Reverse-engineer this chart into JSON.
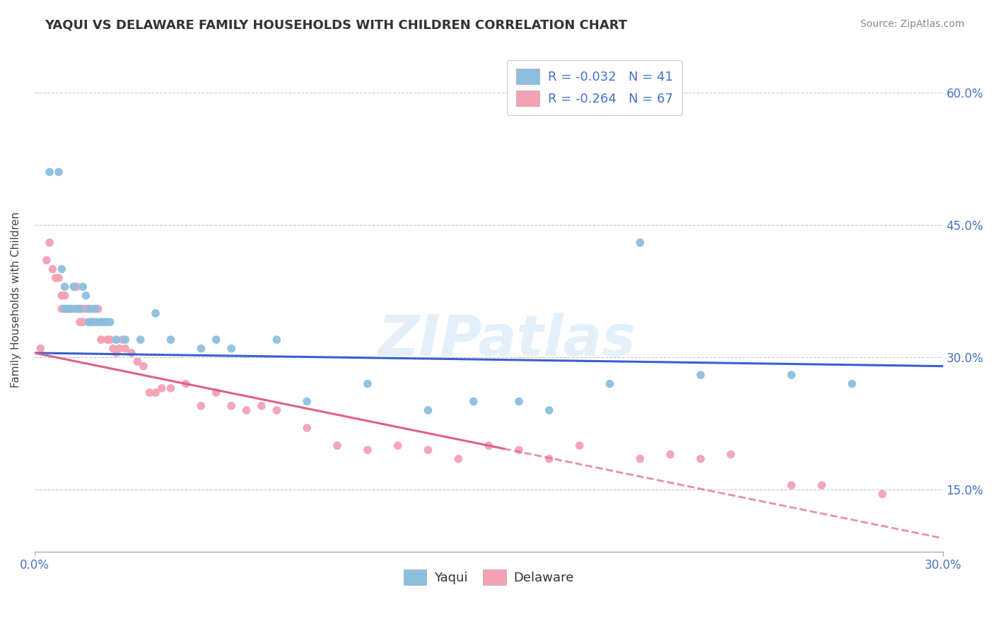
{
  "title": "YAQUI VS DELAWARE FAMILY HOUSEHOLDS WITH CHILDREN CORRELATION CHART",
  "source": "Source: ZipAtlas.com",
  "ylabel": "Family Households with Children",
  "xlim": [
    0.0,
    0.3
  ],
  "ylim": [
    0.08,
    0.65
  ],
  "yticks": [
    0.15,
    0.3,
    0.45,
    0.6
  ],
  "ytick_labels": [
    "15.0%",
    "30.0%",
    "45.0%",
    "60.0%"
  ],
  "xtick_labels": [
    "0.0%",
    "30.0%"
  ],
  "yaqui_color": "#8bbfdf",
  "delaware_color": "#f4a0b5",
  "yaqui_line_color": "#3a5fcd",
  "delaware_line_color": "#e06080",
  "yaqui_R": -0.032,
  "yaqui_N": 41,
  "delaware_R": -0.264,
  "delaware_N": 67,
  "watermark": "ZIPatlas",
  "background_color": "#ffffff",
  "grid_color": "#c8c8c8",
  "yaqui_x": [
    0.005,
    0.008,
    0.009,
    0.01,
    0.01,
    0.011,
    0.012,
    0.013,
    0.014,
    0.015,
    0.016,
    0.017,
    0.018,
    0.018,
    0.019,
    0.02,
    0.021,
    0.022,
    0.023,
    0.024,
    0.025,
    0.027,
    0.03,
    0.035,
    0.04,
    0.045,
    0.055,
    0.06,
    0.065,
    0.08,
    0.09,
    0.11,
    0.13,
    0.145,
    0.16,
    0.17,
    0.19,
    0.2,
    0.22,
    0.25,
    0.27
  ],
  "yaqui_y": [
    0.51,
    0.51,
    0.4,
    0.38,
    0.355,
    0.355,
    0.355,
    0.38,
    0.355,
    0.355,
    0.38,
    0.37,
    0.355,
    0.34,
    0.34,
    0.355,
    0.34,
    0.34,
    0.34,
    0.34,
    0.34,
    0.32,
    0.32,
    0.32,
    0.35,
    0.32,
    0.31,
    0.32,
    0.31,
    0.32,
    0.25,
    0.27,
    0.24,
    0.25,
    0.25,
    0.24,
    0.27,
    0.43,
    0.28,
    0.28,
    0.27
  ],
  "delaware_x": [
    0.002,
    0.004,
    0.005,
    0.006,
    0.007,
    0.008,
    0.009,
    0.009,
    0.01,
    0.01,
    0.011,
    0.012,
    0.013,
    0.013,
    0.014,
    0.015,
    0.015,
    0.016,
    0.016,
    0.017,
    0.018,
    0.018,
    0.019,
    0.019,
    0.02,
    0.021,
    0.022,
    0.022,
    0.023,
    0.024,
    0.025,
    0.026,
    0.027,
    0.028,
    0.029,
    0.03,
    0.032,
    0.034,
    0.036,
    0.038,
    0.04,
    0.042,
    0.045,
    0.05,
    0.055,
    0.06,
    0.065,
    0.07,
    0.075,
    0.08,
    0.09,
    0.1,
    0.11,
    0.12,
    0.13,
    0.14,
    0.15,
    0.16,
    0.17,
    0.18,
    0.2,
    0.21,
    0.22,
    0.23,
    0.25,
    0.26,
    0.28
  ],
  "delaware_y": [
    0.31,
    0.41,
    0.43,
    0.4,
    0.39,
    0.39,
    0.37,
    0.355,
    0.37,
    0.355,
    0.355,
    0.355,
    0.38,
    0.355,
    0.38,
    0.355,
    0.34,
    0.355,
    0.34,
    0.355,
    0.355,
    0.34,
    0.355,
    0.34,
    0.34,
    0.355,
    0.34,
    0.32,
    0.34,
    0.32,
    0.32,
    0.31,
    0.305,
    0.31,
    0.32,
    0.31,
    0.305,
    0.295,
    0.29,
    0.26,
    0.26,
    0.265,
    0.265,
    0.27,
    0.245,
    0.26,
    0.245,
    0.24,
    0.245,
    0.24,
    0.22,
    0.2,
    0.195,
    0.2,
    0.195,
    0.185,
    0.2,
    0.195,
    0.185,
    0.2,
    0.185,
    0.19,
    0.185,
    0.19,
    0.155,
    0.155,
    0.145
  ]
}
